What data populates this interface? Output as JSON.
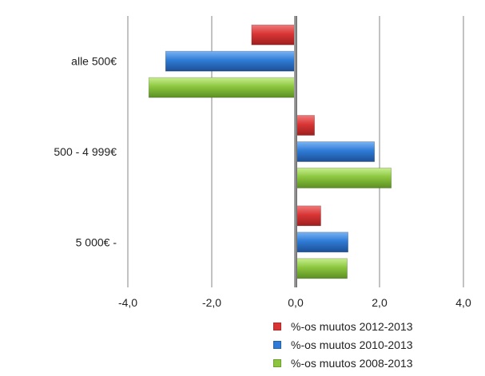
{
  "chart_data": {
    "type": "bar",
    "orientation": "horizontal",
    "categories": [
      "alle 500€",
      "500 - 4 999€",
      "5 000€ -"
    ],
    "series": [
      {
        "name": "%-os muutos 2012-2013",
        "values": [
          -1.05,
          0.45,
          0.6
        ],
        "color": "#d93535"
      },
      {
        "name": "%-os muutos 2010-2013",
        "values": [
          -3.1,
          1.88,
          1.25
        ],
        "color": "#2f7bd6"
      },
      {
        "name": "%-os muutos 2008-2013",
        "values": [
          -3.5,
          2.28,
          1.23
        ],
        "color": "#8cc63f"
      }
    ],
    "title": "",
    "xlabel": "",
    "ylabel": "",
    "xlim": [
      -4.0,
      4.0
    ],
    "xticks": [
      "-4,0",
      "-2,0",
      "0,0",
      "2,0",
      "4,0"
    ],
    "grid": true,
    "legend_position": "bottom-right"
  }
}
